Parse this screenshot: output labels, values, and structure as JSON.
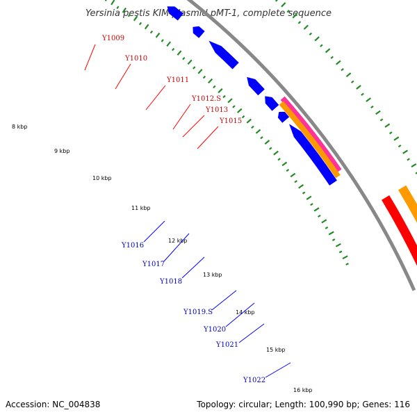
{
  "title": "Yersinia pestis KIM plasmid pMT-1, complete sequence",
  "footer": {
    "accession": "Accession: NC_004838",
    "summary": "Topology: circular; Length: 100,990 bp; Genes: 116"
  },
  "colors": {
    "forward_cds": "#ff0000",
    "reverse_cds": "#0000ff",
    "pink_feature": "#ff3399",
    "orange_feature": "#ff9900",
    "backbone": "#888888",
    "tick": "#228b22",
    "forward_label": "#cc0000",
    "reverse_label": "#0000bb"
  },
  "kbp_labels": [
    "8 kbp",
    "9 kbp",
    "10 kbp",
    "11 kbp",
    "12 kbp",
    "13 kbp",
    "14 kbp",
    "15 kbp",
    "16 kbp"
  ],
  "forward_genes": [
    "Y1009",
    "Y1010",
    "Y1011",
    "Y1012.S",
    "Y1013",
    "Y1015"
  ],
  "reverse_genes": [
    "Y1016",
    "Y1017",
    "Y1018",
    "Y1019.S",
    "Y1020",
    "Y1021",
    "Y1022"
  ]
}
